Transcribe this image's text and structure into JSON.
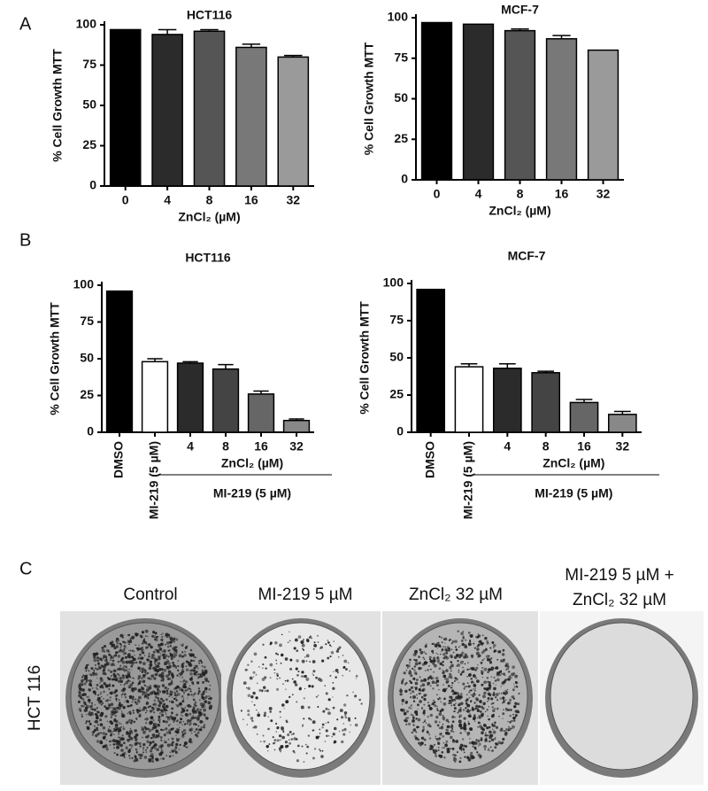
{
  "panel_labels": [
    "A",
    "B",
    "C"
  ],
  "chart_data": [
    {
      "type": "bar",
      "title": "HCT116",
      "ylabel": "% Cell Growth MTT",
      "xlabel": "ZnCl₂ (µM)",
      "categories": [
        "0",
        "4",
        "8",
        "16",
        "32"
      ],
      "values": [
        97,
        94,
        96,
        86,
        80
      ],
      "errors": [
        null,
        3,
        1,
        2,
        1
      ],
      "colors": [
        "#000000",
        "#2b2b2b",
        "#555555",
        "#787878",
        "#9a9a9a"
      ],
      "ylim": [
        0,
        100
      ],
      "yticks": [
        0,
        25,
        50,
        75,
        100
      ]
    },
    {
      "type": "bar",
      "title": "MCF-7",
      "ylabel": "% Cell Growth MTT",
      "xlabel": "ZnCl₂ (µM)",
      "categories": [
        "0",
        "4",
        "8",
        "16",
        "32"
      ],
      "values": [
        97,
        96,
        92,
        87,
        80
      ],
      "errors": [
        null,
        null,
        1,
        2,
        null
      ],
      "colors": [
        "#000000",
        "#2b2b2b",
        "#555555",
        "#787878",
        "#9a9a9a"
      ],
      "ylim": [
        0,
        100
      ],
      "yticks": [
        0,
        25,
        50,
        75,
        100
      ]
    },
    {
      "type": "bar",
      "title": "HCT116",
      "ylabel": "% Cell Growth MTT",
      "xlabel": "ZnCl₂ (µM)",
      "group_label": "MI-219 (5 µM)",
      "categories": [
        "DMSO",
        "MI-219 (5 µM)",
        "4",
        "8",
        "16",
        "32"
      ],
      "values": [
        96,
        48,
        47,
        43,
        26,
        8
      ],
      "errors": [
        null,
        2,
        1,
        3,
        2,
        1
      ],
      "colors": [
        "#000000",
        "#ffffff",
        "#2b2b2b",
        "#444444",
        "#666666",
        "#888888"
      ],
      "ylim": [
        0,
        100
      ],
      "yticks": [
        0,
        25,
        50,
        75,
        100
      ]
    },
    {
      "type": "bar",
      "title": "MCF-7",
      "ylabel": "% Cell Growth MTT",
      "xlabel": "ZnCl₂ (µM)",
      "group_label": "MI-219 (5 µM)",
      "categories": [
        "DMSO",
        "MI-219 (5 µM)",
        "4",
        "8",
        "16",
        "32"
      ],
      "values": [
        96,
        44,
        43,
        40,
        20,
        12
      ],
      "errors": [
        null,
        2,
        3,
        1,
        2,
        2
      ],
      "colors": [
        "#000000",
        "#ffffff",
        "#2b2b2b",
        "#444444",
        "#666666",
        "#888888"
      ],
      "ylim": [
        0,
        100
      ],
      "yticks": [
        0,
        25,
        50,
        75,
        100
      ]
    }
  ],
  "panel_c": {
    "row_label": "HCT 116",
    "headings": [
      [
        "Control"
      ],
      [
        "MI-219 5 µM"
      ],
      [
        "ZnCl₂ 32 µM"
      ],
      [
        "MI-219 5 µM +",
        "ZnCl₂ 32 µM"
      ]
    ]
  }
}
